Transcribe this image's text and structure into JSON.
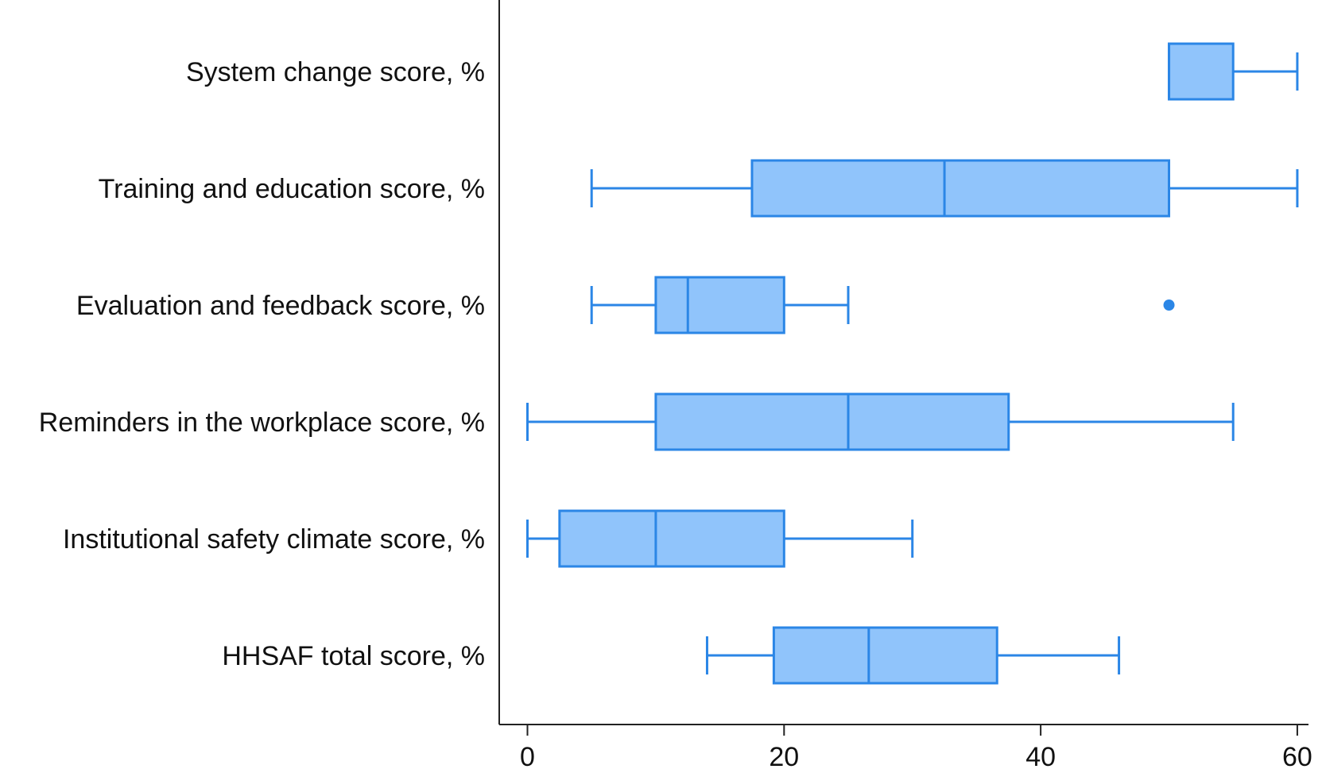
{
  "chart_data": {
    "type": "boxplot",
    "orientation": "horizontal",
    "title": "",
    "xlabel": "",
    "ylabel": "",
    "xlim": [
      -2.2,
      60.5
    ],
    "xticks": [
      0,
      20,
      40,
      60
    ],
    "grid": false,
    "colors": {
      "box_fill": "#90c4fb",
      "box_stroke": "#2b86e6",
      "axis": "#222222",
      "text": "#111111"
    },
    "categories": [
      "System change score, %",
      "Training and education score, %",
      "Evaluation and feedback score, %",
      "Reminders in the workplace score, %",
      "Institutional safety climate score, %",
      "HHSAF total score, %"
    ],
    "boxes": [
      {
        "min": 50,
        "q1": 50,
        "median": 50,
        "q3": 55,
        "max": 60,
        "outliers": []
      },
      {
        "min": 5,
        "q1": 17.5,
        "median": 32.5,
        "q3": 50,
        "max": 60,
        "outliers": []
      },
      {
        "min": 5,
        "q1": 10,
        "median": 12.5,
        "q3": 20,
        "max": 25,
        "outliers": [
          50
        ]
      },
      {
        "min": 0,
        "q1": 10,
        "median": 25,
        "q3": 37.5,
        "max": 55,
        "outliers": []
      },
      {
        "min": 0,
        "q1": 2.5,
        "median": 10,
        "q3": 20,
        "max": 30,
        "outliers": []
      },
      {
        "min": 14,
        "q1": 19.2,
        "median": 26.6,
        "q3": 36.6,
        "max": 46.1,
        "outliers": []
      }
    ]
  }
}
